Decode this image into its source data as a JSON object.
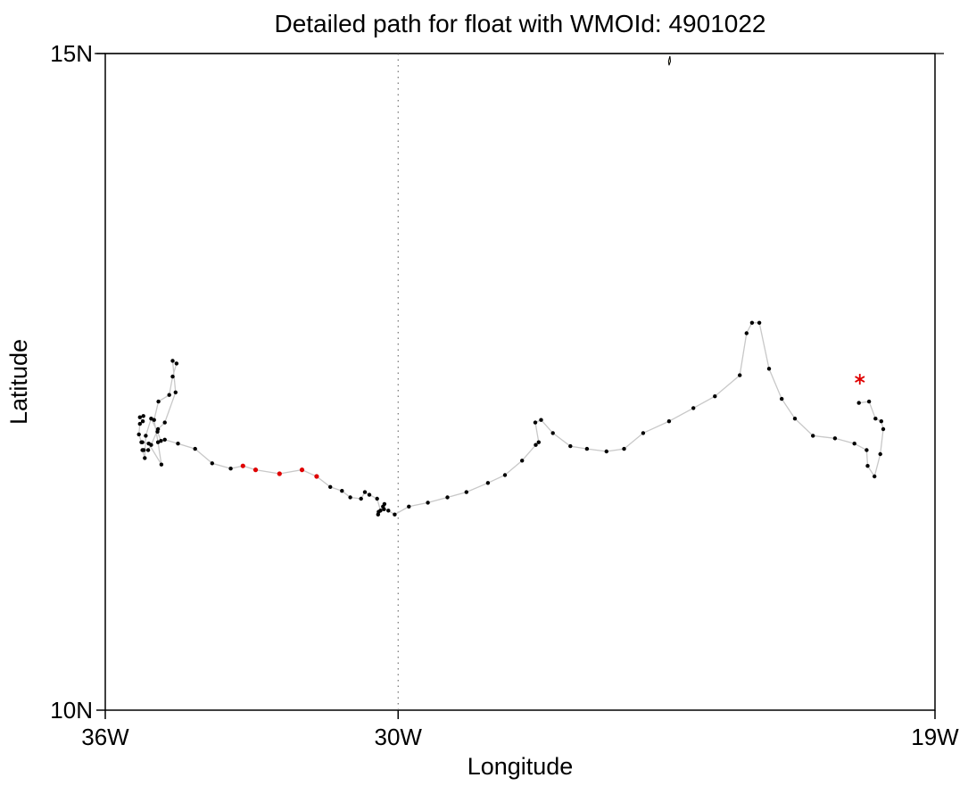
{
  "chart_data": {
    "type": "map",
    "title": "Detailed path for float with WMOId: 4901022",
    "xlabel": "Longitude",
    "ylabel": "Latitude",
    "xlim": [
      -36,
      -19
    ],
    "ylim": [
      10,
      15
    ],
    "x_ticks": [
      {
        "value": -36,
        "label": "36W"
      },
      {
        "value": -30,
        "label": "30W"
      },
      {
        "value": -19,
        "label": "19W"
      }
    ],
    "y_ticks": [
      {
        "value": 10,
        "label": "10N"
      },
      {
        "value": 15,
        "label": "15N"
      }
    ],
    "meridian_line": -30,
    "track_color": "#c8c8c8",
    "point_color": "#000000",
    "highlight_color": "#e00000",
    "path": [
      [
        -35.22,
        12.24
      ],
      [
        -35.29,
        12.23
      ],
      [
        -35.23,
        12.2
      ],
      [
        -35.29,
        12.18
      ],
      [
        -35.31,
        12.1
      ],
      [
        -35.26,
        12.04
      ],
      [
        -35.24,
        12.04
      ],
      [
        -35.11,
        12.03
      ],
      [
        -34.85,
        11.87
      ],
      [
        -34.92,
        12.04
      ],
      [
        -35.0,
        12.21
      ],
      [
        -34.91,
        12.35
      ],
      [
        -34.69,
        12.4
      ],
      [
        -34.62,
        12.54
      ],
      [
        -34.54,
        12.64
      ],
      [
        -34.62,
        12.66
      ],
      [
        -34.56,
        12.42
      ],
      [
        -34.78,
        12.19
      ],
      [
        -34.92,
        12.14
      ],
      [
        -35.06,
        12.02
      ],
      [
        -35.12,
        11.98
      ],
      [
        -35.21,
        11.98
      ],
      [
        -35.24,
        11.98
      ],
      [
        -35.19,
        11.92
      ],
      [
        -35.17,
        12.09
      ],
      [
        -35.06,
        12.22
      ],
      [
        -34.93,
        12.12
      ],
      [
        -34.86,
        12.05
      ],
      [
        -34.78,
        12.06
      ],
      [
        -34.51,
        12.03
      ],
      [
        -34.16,
        11.99
      ],
      [
        -33.81,
        11.88
      ],
      [
        -33.43,
        11.84
      ],
      [
        -33.18,
        11.86
      ],
      [
        -32.92,
        11.83
      ],
      [
        -32.43,
        11.8
      ],
      [
        -31.97,
        11.83
      ],
      [
        -31.67,
        11.78
      ],
      [
        -31.39,
        11.7
      ],
      [
        -31.15,
        11.67
      ],
      [
        -30.98,
        11.62
      ],
      [
        -30.76,
        11.61
      ],
      [
        -30.68,
        11.66
      ],
      [
        -30.59,
        11.64
      ],
      [
        -30.43,
        11.61
      ],
      [
        -30.36,
        11.52
      ],
      [
        -30.41,
        11.49
      ],
      [
        -30.4,
        11.51
      ],
      [
        -30.31,
        11.55
      ],
      [
        -30.28,
        11.57
      ],
      [
        -30.29,
        11.53
      ],
      [
        -30.2,
        11.52
      ],
      [
        -30.07,
        11.49
      ],
      [
        -29.78,
        11.55
      ],
      [
        -29.39,
        11.58
      ],
      [
        -28.99,
        11.62
      ],
      [
        -28.6,
        11.66
      ],
      [
        -28.16,
        11.73
      ],
      [
        -27.81,
        11.79
      ],
      [
        -27.46,
        11.9
      ],
      [
        -27.18,
        12.02
      ],
      [
        -27.12,
        12.04
      ],
      [
        -27.19,
        12.19
      ],
      [
        -27.07,
        12.21
      ],
      [
        -26.83,
        12.11
      ],
      [
        -26.47,
        12.01
      ],
      [
        -26.13,
        11.99
      ],
      [
        -25.73,
        11.97
      ],
      [
        -25.37,
        11.99
      ],
      [
        -24.98,
        12.11
      ],
      [
        -24.45,
        12.2
      ],
      [
        -23.95,
        12.3
      ],
      [
        -23.51,
        12.39
      ],
      [
        -23.0,
        12.55
      ],
      [
        -22.86,
        12.87
      ],
      [
        -22.75,
        12.95
      ],
      [
        -22.6,
        12.95
      ],
      [
        -22.4,
        12.6
      ],
      [
        -22.14,
        12.37
      ],
      [
        -21.87,
        12.22
      ],
      [
        -21.5,
        12.09
      ],
      [
        -21.05,
        12.07
      ],
      [
        -20.65,
        12.03
      ],
      [
        -20.4,
        11.98
      ],
      [
        -20.38,
        11.86
      ],
      [
        -20.24,
        11.78
      ],
      [
        -20.12,
        11.95
      ],
      [
        -20.06,
        12.14
      ],
      [
        -20.1,
        12.2
      ],
      [
        -20.22,
        12.22
      ],
      [
        -20.35,
        12.35
      ],
      [
        -20.56,
        12.34
      ]
    ],
    "highlighted_points": [
      [
        -33.18,
        11.86
      ],
      [
        -32.92,
        11.83
      ],
      [
        -32.43,
        11.8
      ],
      [
        -31.97,
        11.83
      ],
      [
        -31.67,
        11.78
      ]
    ],
    "last_position": [
      -20.54,
      12.52
    ],
    "land": {
      "name": "island",
      "outline": [
        [
          -24.45,
          14.91
        ],
        [
          -24.46,
          14.94
        ],
        [
          -24.43,
          14.98
        ],
        [
          -24.42,
          14.94
        ]
      ]
    }
  }
}
